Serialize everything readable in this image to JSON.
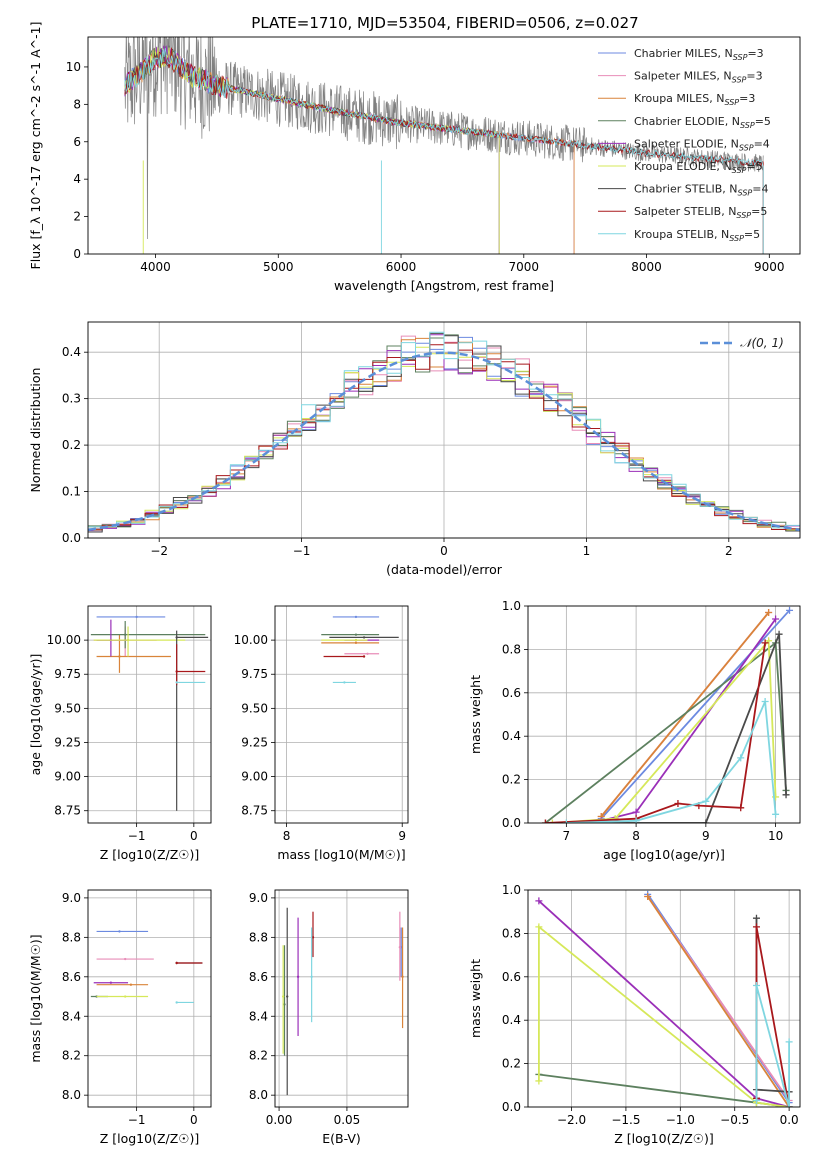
{
  "title": "PLATE=1710, MJD=53504, FIBERID=0506, z=0.027",
  "colors": {
    "Chabrier MILES": "#6c8ae0",
    "Salpeter MILES": "#e88db8",
    "Kroupa MILES": "#d9843a",
    "Chabrier ELODIE": "#5d805f",
    "Salpeter ELODIE": "#9a2fb8",
    "Kroupa ELODIE": "#d6e85a",
    "Chabrier STELIB": "#4a4a4a",
    "Salpeter STELIB": "#a8181c",
    "Kroupa STELIB": "#7fd6e0",
    "data": "#808080",
    "gaussian": "#5b8fd8"
  },
  "chart_data": [
    {
      "id": "spectrum",
      "type": "line",
      "title": "PLATE=1710, MJD=53504, FIBERID=0506, z=0.027",
      "xlabel": "wavelength [Angstrom, rest frame]",
      "ylabel": "Flux [f_λ 10^-17 erg cm^-2 s^-1 A^-1]",
      "xlim": [
        3450,
        9250
      ],
      "ylim": [
        0,
        11.6
      ],
      "xticks": [
        4000,
        5000,
        6000,
        7000,
        8000,
        9000
      ],
      "yticks": [
        0,
        2,
        4,
        6,
        8,
        10
      ],
      "legend": [
        "Chabrier MILES, N_SSP=3",
        "Salpeter MILES, N_SSP=3",
        "Kroupa MILES, N_SSP=3",
        "Chabrier ELODIE, N_SSP=5",
        "Salpeter ELODIE, N_SSP=4",
        "Kroupa ELODIE, N_SSP=5",
        "Chabrier STELIB, N_SSP=4",
        "Salpeter STELIB, N_SSP=5",
        "Kroupa STELIB, N_SSP=5"
      ],
      "legend_loc": "upper right",
      "continuum": {
        "x": [
          3750,
          3900,
          4000,
          4100,
          4300,
          4500,
          5000,
          5500,
          6000,
          6500,
          7000,
          7500,
          8000,
          8500,
          9000
        ],
        "y": [
          9.0,
          9.8,
          10.5,
          10.6,
          9.5,
          9.0,
          8.3,
          7.6,
          7.0,
          6.6,
          6.2,
          5.8,
          5.4,
          5.1,
          4.8
        ]
      },
      "model_ranges": {
        "MILES": [
          3750,
          7410
        ],
        "ELODIE": [
          3750,
          6800
        ],
        "STELIB": [
          3750,
          8950
        ]
      }
    },
    {
      "id": "residuals",
      "type": "histogram",
      "xlabel": "(data-model)/error",
      "ylabel": "Normed distribution",
      "xlim": [
        -2.5,
        2.5
      ],
      "ylim": [
        0,
        0.465
      ],
      "xticks": [
        -2,
        -1,
        0,
        1,
        2
      ],
      "yticks": [
        0.0,
        0.1,
        0.2,
        0.3,
        0.4
      ],
      "bin_width": 0.1,
      "reference": "N(0,1)",
      "legend": [
        "𝒩(0, 1)"
      ],
      "legend_loc": "upper right"
    },
    {
      "id": "age_vs_Z",
      "type": "errorbar",
      "xlabel": "Z [log10(Z/Z☉)]",
      "ylabel": "age [log10(age/yr)]",
      "xlim": [
        -1.85,
        0.3
      ],
      "ylim": [
        8.66,
        10.25
      ],
      "xticks": [
        -1,
        0
      ],
      "yticks": [
        8.75,
        9.0,
        9.25,
        9.5,
        9.75,
        10.0
      ],
      "points": [
        {
          "model": "Chabrier MILES",
          "x": -1.0,
          "xerr": [
            0.7,
            0.5
          ],
          "y": 10.17,
          "yerr": [
            0.0,
            0.0
          ]
        },
        {
          "model": "Salpeter MILES",
          "x": -1.2,
          "xerr": [
            0.55,
            0.55
          ],
          "y": 10.0,
          "yerr": [
            0.12,
            0.1
          ]
        },
        {
          "model": "Kroupa MILES",
          "x": -1.3,
          "xerr": [
            0.4,
            0.9
          ],
          "y": 9.88,
          "yerr": [
            0.12,
            0.16
          ]
        },
        {
          "model": "Chabrier ELODIE",
          "x": -1.2,
          "xerr": [
            0.6,
            1.4
          ],
          "y": 10.04,
          "yerr": [
            0.1,
            0.1
          ]
        },
        {
          "model": "Salpeter ELODIE",
          "x": -1.45,
          "xerr": [
            0.25,
            0.3
          ],
          "y": 10.0,
          "yerr": [
            0.12,
            0.15
          ]
        },
        {
          "model": "Kroupa ELODIE",
          "x": -1.15,
          "xerr": [
            0.6,
            1.0
          ],
          "y": 10.0,
          "yerr": [
            0.12,
            0.1
          ]
        },
        {
          "model": "Chabrier STELIB",
          "x": -0.3,
          "xerr": [
            0.0,
            0.55
          ],
          "y": 10.02,
          "yerr": [
            1.27,
            0.05
          ]
        },
        {
          "model": "Salpeter STELIB",
          "x": -0.3,
          "xerr": [
            0.0,
            0.5
          ],
          "y": 9.77,
          "yerr": [
            0.1,
            0.2
          ]
        },
        {
          "model": "Kroupa STELIB",
          "x": -0.3,
          "xerr": [
            0.0,
            0.5
          ],
          "y": 9.69,
          "yerr": [
            0.0,
            0.0
          ]
        }
      ]
    },
    {
      "id": "age_vs_mass",
      "type": "errorbar",
      "xlabel": "mass [log10(M/M☉)]",
      "ylabel": "",
      "xlim": [
        7.9,
        9.05
      ],
      "ylim": [
        8.66,
        10.25
      ],
      "xticks": [
        8,
        9
      ],
      "yticks": [
        8.75,
        9.0,
        9.25,
        9.5,
        9.75,
        10.0
      ],
      "points": [
        {
          "model": "Chabrier MILES",
          "x": 8.6,
          "xerr": [
            0.2,
            0.2
          ],
          "y": 10.17
        },
        {
          "model": "Salpeter MILES",
          "x": 8.7,
          "xerr": [
            0.2,
            0.1
          ],
          "y": 9.9
        },
        {
          "model": "Kroupa MILES",
          "x": 8.6,
          "xerr": [
            0.3,
            0.2
          ],
          "y": 9.98
        },
        {
          "model": "Chabrier ELODIE",
          "x": 8.6,
          "xerr": [
            0.3,
            0.2
          ],
          "y": 10.04
        },
        {
          "model": "Salpeter ELODIE",
          "x": 8.6,
          "xerr": [
            0.1,
            0.2
          ],
          "y": 10.0
        },
        {
          "model": "Kroupa ELODIE",
          "x": 8.6,
          "xerr": [
            0.3,
            0.1
          ],
          "y": 10.0
        },
        {
          "model": "Chabrier STELIB",
          "x": 8.67,
          "xerr": [
            0.3,
            0.3
          ],
          "y": 10.02
        },
        {
          "model": "Salpeter STELIB",
          "x": 8.67,
          "xerr": [
            0.35,
            0.0
          ],
          "y": 9.88
        },
        {
          "model": "Kroupa STELIB",
          "x": 8.5,
          "xerr": [
            0.1,
            0.1
          ],
          "y": 9.69
        }
      ]
    },
    {
      "id": "weight_vs_age",
      "type": "line",
      "xlabel": "age [log10(age/yr)]",
      "ylabel": "mass weight",
      "xlim": [
        6.45,
        10.35
      ],
      "ylim": [
        0,
        1.0
      ],
      "xticks": [
        7,
        8,
        9,
        10
      ],
      "yticks": [
        0.0,
        0.2,
        0.4,
        0.6,
        0.8,
        1.0
      ],
      "series": [
        {
          "model": "Chabrier MILES",
          "x": [
            7.5,
            10.2
          ],
          "y": [
            0.02,
            0.98
          ]
        },
        {
          "model": "Salpeter MILES",
          "x": [
            7.5,
            9.9
          ],
          "y": [
            0.03,
            0.97
          ]
        },
        {
          "model": "Kroupa MILES",
          "x": [
            7.5,
            9.9
          ],
          "y": [
            0.03,
            0.97
          ]
        },
        {
          "model": "Chabrier ELODIE",
          "x": [
            6.7,
            10.0,
            10.15
          ],
          "y": [
            0.0,
            0.83,
            0.15
          ]
        },
        {
          "model": "Salpeter ELODIE",
          "x": [
            7.5,
            8.0,
            10.0
          ],
          "y": [
            0.01,
            0.05,
            0.94
          ]
        },
        {
          "model": "Kroupa ELODIE",
          "x": [
            6.8,
            7.7,
            9.9,
            10.0
          ],
          "y": [
            0.0,
            0.02,
            0.84,
            0.12
          ]
        },
        {
          "model": "Chabrier STELIB",
          "x": [
            7.5,
            9.0,
            10.05,
            10.15
          ],
          "y": [
            0.0,
            0.0,
            0.87,
            0.13
          ]
        },
        {
          "model": "Salpeter STELIB",
          "x": [
            6.7,
            8.0,
            8.6,
            8.9,
            9.5,
            9.85
          ],
          "y": [
            0.0,
            0.02,
            0.09,
            0.08,
            0.07,
            0.83
          ]
        },
        {
          "model": "Kroupa STELIB",
          "x": [
            7.0,
            8.0,
            9.0,
            9.5,
            9.85,
            10.0
          ],
          "y": [
            0.0,
            0.01,
            0.1,
            0.3,
            0.56,
            0.04
          ]
        }
      ]
    },
    {
      "id": "mass_vs_Z",
      "type": "errorbar",
      "xlabel": "Z [log10(Z/Z☉)]",
      "ylabel": "mass [log10(M/M☉)]",
      "xlim": [
        -1.85,
        0.3
      ],
      "ylim": [
        7.94,
        9.04
      ],
      "xticks": [
        -1,
        0
      ],
      "yticks": [
        8.0,
        8.2,
        8.4,
        8.6,
        8.8,
        9.0
      ],
      "points": [
        {
          "model": "Chabrier MILES",
          "x": -1.3,
          "xerr": [
            0.4,
            0.5
          ],
          "y": 8.83
        },
        {
          "model": "Salpeter MILES",
          "x": -1.2,
          "xerr": [
            0.5,
            0.5
          ],
          "y": 8.69
        },
        {
          "model": "Kroupa MILES",
          "x": -1.1,
          "xerr": [
            0.6,
            0.3
          ],
          "y": 8.56
        },
        {
          "model": "Chabrier ELODIE",
          "x": -1.7,
          "xerr": [
            0.1,
            0.2
          ],
          "y": 8.5
        },
        {
          "model": "Salpeter ELODIE",
          "x": -1.45,
          "xerr": [
            0.3,
            0.3
          ],
          "y": 8.57
        },
        {
          "model": "Kroupa ELODIE",
          "x": -1.2,
          "xerr": [
            0.5,
            0.4
          ],
          "y": 8.5
        },
        {
          "model": "Chabrier STELIB",
          "x": -0.3,
          "xerr": [
            0.0,
            0.45
          ],
          "y": 8.67
        },
        {
          "model": "Salpeter STELIB",
          "x": -0.3,
          "xerr": [
            0.0,
            0.45
          ],
          "y": 8.67
        },
        {
          "model": "Kroupa STELIB",
          "x": -0.3,
          "xerr": [
            0.0,
            0.3
          ],
          "y": 8.47
        }
      ]
    },
    {
      "id": "mass_vs_EBV",
      "type": "errorbar",
      "xlabel": "E(B-V)",
      "ylabel": "",
      "xlim": [
        -0.003,
        0.095
      ],
      "ylim": [
        7.94,
        9.04
      ],
      "xticks": [
        0.0,
        0.05
      ],
      "yticks": [
        8.0,
        8.2,
        8.4,
        8.6,
        8.8,
        9.0
      ],
      "points": [
        {
          "model": "Chabrier MILES",
          "x": 0.09,
          "y": 8.75,
          "yerr": [
            0.15,
            0.1
          ]
        },
        {
          "model": "Salpeter MILES",
          "x": 0.089,
          "y": 8.75,
          "yerr": [
            0.17,
            0.18
          ]
        },
        {
          "model": "Kroupa MILES",
          "x": 0.091,
          "y": 8.6,
          "yerr": [
            0.26,
            0.25
          ]
        },
        {
          "model": "Chabrier ELODIE",
          "x": 0.004,
          "y": 8.46,
          "yerr": [
            0.26,
            0.3
          ]
        },
        {
          "model": "Salpeter ELODIE",
          "x": 0.014,
          "y": 8.6,
          "yerr": [
            0.3,
            0.3
          ]
        },
        {
          "model": "Kroupa ELODIE",
          "x": 0.003,
          "y": 8.5,
          "yerr": [
            0.29,
            0.26
          ]
        },
        {
          "model": "Chabrier STELIB",
          "x": 0.006,
          "y": 8.5,
          "yerr": [
            0.5,
            0.45
          ]
        },
        {
          "model": "Salpeter STELIB",
          "x": 0.025,
          "y": 8.8,
          "yerr": [
            0.1,
            0.13
          ]
        },
        {
          "model": "Kroupa STELIB",
          "x": 0.024,
          "y": 8.6,
          "yerr": [
            0.23,
            0.25
          ]
        }
      ]
    },
    {
      "id": "weight_vs_Z",
      "type": "line",
      "xlabel": "Z [log10(Z/Z☉)]",
      "ylabel": "mass weight",
      "xlim": [
        -2.4,
        0.1
      ],
      "ylim": [
        0,
        1.0
      ],
      "xticks": [
        -2.0,
        -1.5,
        -1.0,
        -0.5,
        0.0
      ],
      "yticks": [
        0.0,
        0.2,
        0.4,
        0.6,
        0.8,
        1.0
      ],
      "series": [
        {
          "model": "Chabrier MILES",
          "x": [
            -1.3,
            0.0
          ],
          "y": [
            0.98,
            0.02
          ]
        },
        {
          "model": "Salpeter MILES",
          "x": [
            -1.3,
            0.0
          ],
          "y": [
            0.97,
            0.03
          ]
        },
        {
          "model": "Kroupa MILES",
          "x": [
            -1.3,
            0.0
          ],
          "y": [
            0.97,
            0.0
          ]
        },
        {
          "model": "Chabrier ELODIE",
          "x": [
            -2.3,
            -0.3,
            0.0
          ],
          "y": [
            0.15,
            0.02,
            0.0
          ]
        },
        {
          "model": "Salpeter ELODIE",
          "x": [
            -2.3,
            -0.3,
            0.0
          ],
          "y": [
            0.95,
            0.04,
            0.0
          ]
        },
        {
          "model": "Kroupa ELODIE",
          "x": [
            -2.3,
            -2.3,
            -0.3,
            0.0
          ],
          "y": [
            0.12,
            0.83,
            0.02,
            0.0
          ]
        },
        {
          "model": "Chabrier STELIB",
          "x": [
            -0.3,
            -0.3,
            0.0,
            0.0
          ],
          "y": [
            0.87,
            0.08,
            0.07,
            0.0
          ]
        },
        {
          "model": "Salpeter STELIB",
          "x": [
            -0.3,
            -0.3,
            0.0
          ],
          "y": [
            0.04,
            0.83,
            0.0
          ]
        },
        {
          "model": "Kroupa STELIB",
          "x": [
            -0.3,
            -0.3,
            0.0,
            0.0
          ],
          "y": [
            0.03,
            0.56,
            0.0,
            0.3
          ]
        }
      ]
    }
  ]
}
